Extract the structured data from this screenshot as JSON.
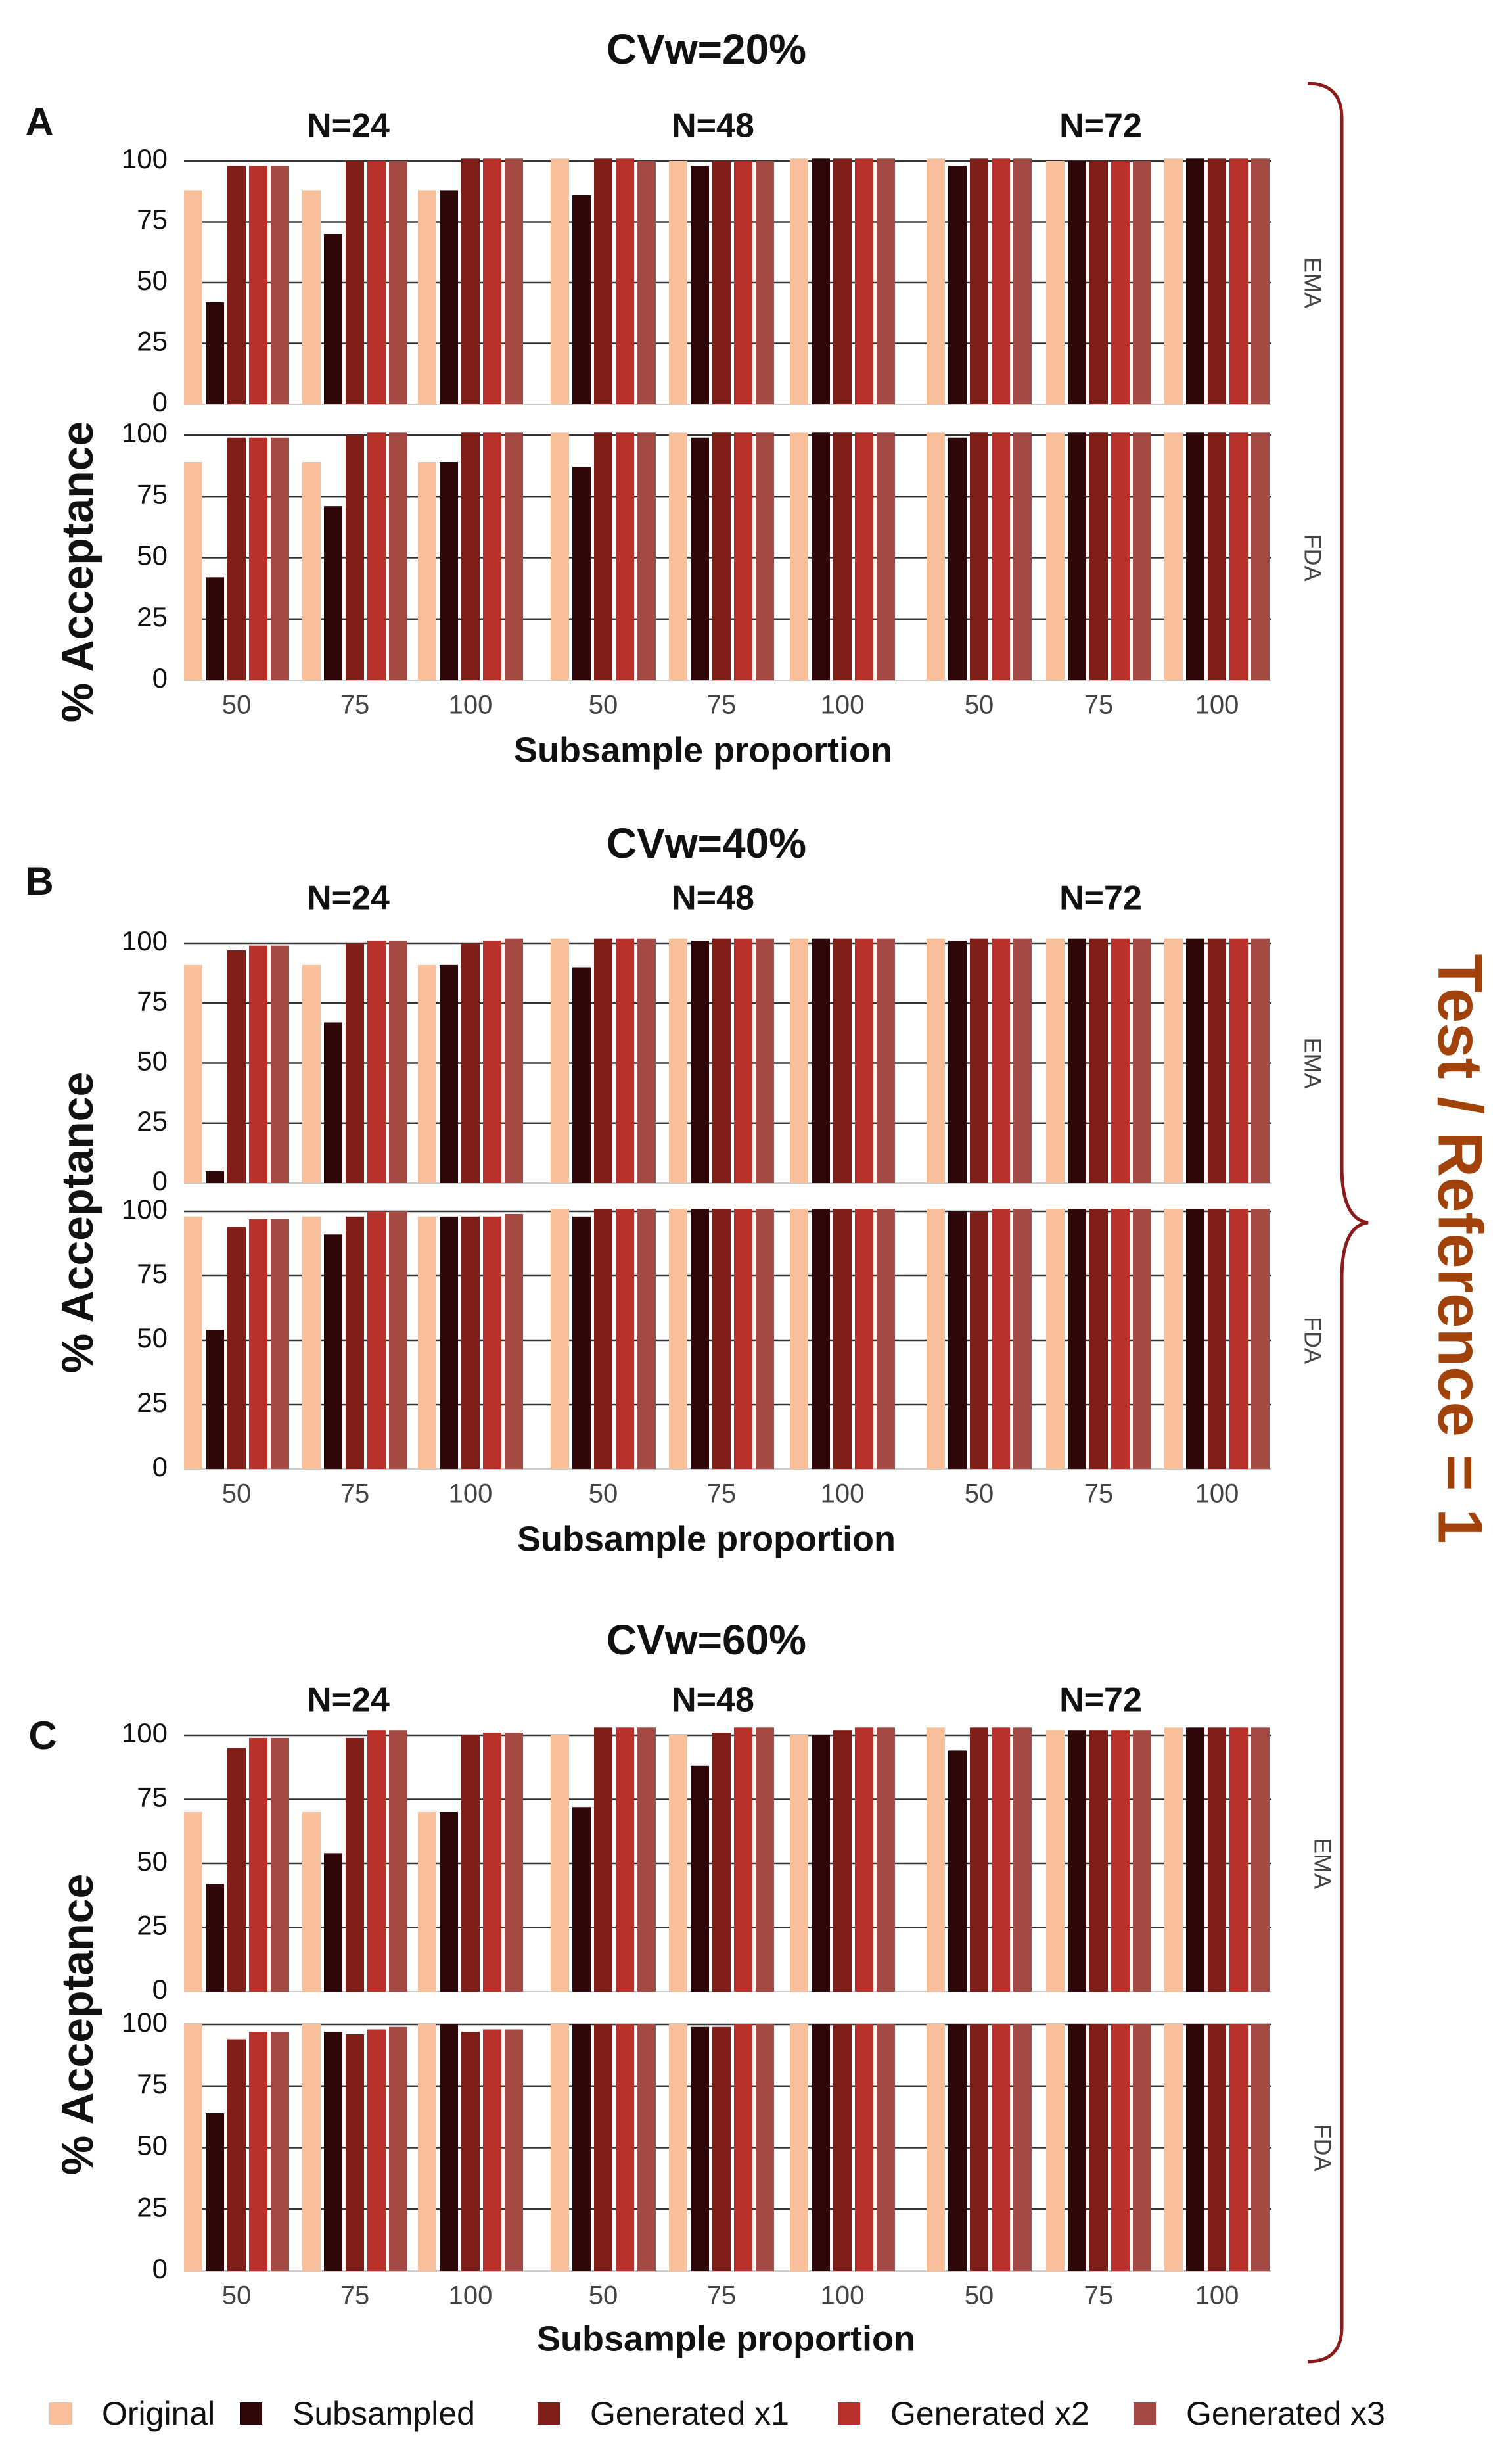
{
  "legend": [
    {
      "label": "Original",
      "color": "#F8C09A"
    },
    {
      "label": "Subsampled",
      "color": "#2E0808"
    },
    {
      "label": "Generated x1",
      "color": "#7F1D19"
    },
    {
      "label": "Generated x2",
      "color": "#B8302A"
    },
    {
      "label": "Generated x3",
      "color": "#A34A45"
    }
  ],
  "side_label": "Test / Reference = 1",
  "colors": {
    "side_label": "#A0420A",
    "brace": "#8B1A1A",
    "grid": "#333333"
  },
  "axis": {
    "ylabel": "% Acceptance",
    "xlabel": "Subsample proportion"
  },
  "chart_data": [
    {
      "type": "bar",
      "panel_letter": "A",
      "title": "CVw=20%",
      "xlabel": "Subsample proportion",
      "ylabel": "% Acceptance",
      "ylim": [
        0,
        100
      ],
      "yticks": [
        0,
        25,
        50,
        75,
        100
      ],
      "facet_columns": [
        "N=24",
        "N=48",
        "N=72"
      ],
      "facet_rows": [
        "EMA",
        "FDA"
      ],
      "categories": [
        "50",
        "75",
        "100"
      ],
      "series_names": [
        "Original",
        "Subsampled",
        "Generated x1",
        "Generated x2",
        "Generated x3"
      ],
      "data": {
        "EMA": {
          "N=24": [
            [
              88,
              42,
              98,
              98,
              98
            ],
            [
              88,
              70,
              100,
              100,
              100
            ],
            [
              88,
              88,
              101,
              101,
              101
            ]
          ],
          "N=48": [
            [
              101,
              86,
              101,
              101,
              100
            ],
            [
              100,
              98,
              100,
              100,
              100
            ],
            [
              101,
              101,
              101,
              101,
              101
            ]
          ],
          "N=72": [
            [
              101,
              98,
              101,
              101,
              101
            ],
            [
              100,
              100,
              100,
              100,
              100
            ],
            [
              101,
              101,
              101,
              101,
              101
            ]
          ]
        },
        "FDA": {
          "N=24": [
            [
              89,
              42,
              99,
              99,
              99
            ],
            [
              89,
              71,
              100,
              101,
              101
            ],
            [
              89,
              89,
              101,
              101,
              101
            ]
          ],
          "N=48": [
            [
              101,
              87,
              101,
              101,
              101
            ],
            [
              101,
              99,
              101,
              101,
              101
            ],
            [
              101,
              101,
              101,
              101,
              101
            ]
          ],
          "N=72": [
            [
              101,
              99,
              101,
              101,
              101
            ],
            [
              101,
              101,
              101,
              101,
              101
            ],
            [
              101,
              101,
              101,
              101,
              101
            ]
          ]
        }
      }
    },
    {
      "type": "bar",
      "panel_letter": "B",
      "title": "CVw=40%",
      "xlabel": "Subsample proportion",
      "ylabel": "% Acceptance",
      "ylim": [
        0,
        100
      ],
      "yticks": [
        0,
        25,
        50,
        75,
        100
      ],
      "facet_columns": [
        "N=24",
        "N=48",
        "N=72"
      ],
      "facet_rows": [
        "EMA",
        "FDA"
      ],
      "categories": [
        "50",
        "75",
        "100"
      ],
      "series_names": [
        "Original",
        "Subsampled",
        "Generated x1",
        "Generated x2",
        "Generated x3"
      ],
      "data": {
        "EMA": {
          "N=24": [
            [
              91,
              5,
              97,
              99,
              99
            ],
            [
              91,
              67,
              100,
              101,
              101
            ],
            [
              91,
              91,
              100,
              101,
              102
            ]
          ],
          "N=48": [
            [
              102,
              90,
              102,
              102,
              102
            ],
            [
              102,
              101,
              102,
              102,
              102
            ],
            [
              102,
              102,
              102,
              102,
              102
            ]
          ],
          "N=72": [
            [
              102,
              101,
              102,
              102,
              102
            ],
            [
              102,
              102,
              102,
              102,
              102
            ],
            [
              102,
              102,
              102,
              102,
              102
            ]
          ]
        },
        "FDA": {
          "N=24": [
            [
              98,
              54,
              94,
              97,
              97
            ],
            [
              98,
              91,
              98,
              100,
              100
            ],
            [
              98,
              98,
              98,
              98,
              99
            ]
          ],
          "N=48": [
            [
              101,
              98,
              101,
              101,
              101
            ],
            [
              101,
              101,
              101,
              101,
              101
            ],
            [
              101,
              101,
              101,
              101,
              101
            ]
          ],
          "N=72": [
            [
              101,
              100,
              100,
              101,
              101
            ],
            [
              101,
              101,
              101,
              101,
              101
            ],
            [
              101,
              101,
              101,
              101,
              101
            ]
          ]
        }
      }
    },
    {
      "type": "bar",
      "panel_letter": "C",
      "title": "CVw=60%",
      "xlabel": "Subsample proportion",
      "ylabel": "% Acceptance",
      "ylim": [
        0,
        100
      ],
      "yticks": [
        0,
        25,
        50,
        75,
        100
      ],
      "facet_columns": [
        "N=24",
        "N=48",
        "N=72"
      ],
      "facet_rows": [
        "EMA",
        "FDA"
      ],
      "categories": [
        "50",
        "75",
        "100"
      ],
      "series_names": [
        "Original",
        "Subsampled",
        "Generated x1",
        "Generated x2",
        "Generated x3"
      ],
      "data": {
        "EMA": {
          "N=24": [
            [
              70,
              42,
              95,
              99,
              99
            ],
            [
              70,
              54,
              99,
              102,
              102
            ],
            [
              70,
              70,
              100,
              101,
              101
            ]
          ],
          "N=48": [
            [
              100,
              72,
              103,
              103,
              103
            ],
            [
              100,
              88,
              101,
              103,
              103
            ],
            [
              100,
              100,
              102,
              103,
              103
            ]
          ],
          "N=72": [
            [
              103,
              94,
              103,
              103,
              103
            ],
            [
              102,
              102,
              102,
              102,
              102
            ],
            [
              103,
              103,
              103,
              103,
              103
            ]
          ]
        },
        "FDA": {
          "N=24": [
            [
              100,
              64,
              94,
              97,
              97
            ],
            [
              100,
              97,
              96,
              98,
              99
            ],
            [
              100,
              100,
              97,
              98,
              98
            ]
          ],
          "N=48": [
            [
              100,
              100,
              100,
              100,
              100
            ],
            [
              100,
              99,
              99,
              100,
              100
            ],
            [
              100,
              100,
              100,
              100,
              100
            ]
          ],
          "N=72": [
            [
              100,
              100,
              100,
              100,
              100
            ],
            [
              100,
              100,
              100,
              100,
              100
            ],
            [
              100,
              100,
              100,
              100,
              100
            ]
          ]
        }
      }
    }
  ]
}
